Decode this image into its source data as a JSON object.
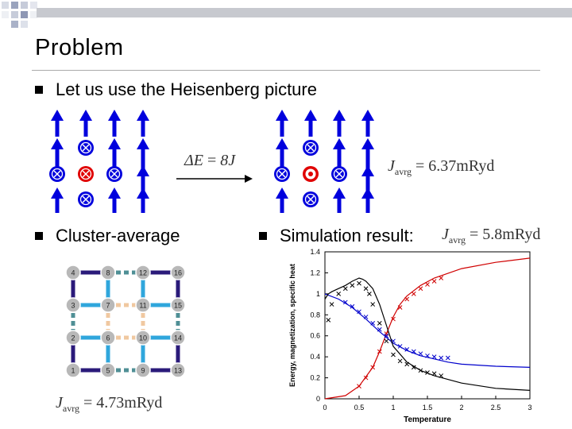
{
  "slide": {
    "title": "Problem",
    "bullets": [
      {
        "text": "Let us use the Heisenberg picture"
      },
      {
        "text": "Cluster-average"
      },
      {
        "text": "Simulation result:"
      }
    ]
  },
  "formulas": {
    "delta_e": {
      "lhs": "ΔE",
      "eq": " = ",
      "value": "8J"
    },
    "j_left": {
      "sym": "J",
      "sub": "avrg",
      "eq": " = ",
      "value": "4.73",
      "unit": "mRyd"
    },
    "j_middle": {
      "sym": "J",
      "sub": "avrg",
      "eq": " = ",
      "value": "6.37",
      "unit": "mRyd"
    },
    "j_right": {
      "sym": "J",
      "sub": "avrg",
      "eq": " = ",
      "value": "5.8",
      "unit": "mRyd"
    }
  },
  "lattice": {
    "nodes": [
      [
        {
          "label": "4"
        },
        {
          "label": "8"
        },
        {
          "label": "12"
        },
        {
          "label": "16"
        }
      ],
      [
        {
          "label": "3"
        },
        {
          "label": "7"
        },
        {
          "label": "11"
        },
        {
          "label": "15"
        }
      ],
      [
        {
          "label": "2"
        },
        {
          "label": "6"
        },
        {
          "label": "10"
        },
        {
          "label": "14"
        }
      ],
      [
        {
          "label": "1"
        },
        {
          "label": "5"
        },
        {
          "label": "9"
        },
        {
          "label": "13"
        }
      ]
    ]
  },
  "colors": {
    "arrow_blue": "#0000dd",
    "spin_red": "#e00000",
    "lattice_purple": "#2a1a7a",
    "lattice_blue": "#2fa6dc",
    "lattice_teal": "#4f8f95",
    "lattice_peach": "#f0c8a0"
  },
  "chart_data": {
    "type": "line",
    "xlabel": "Temperature",
    "ylabel": "Energy, magnetization, specific heat",
    "xlim": [
      0,
      3
    ],
    "ylim": [
      0,
      1.4
    ],
    "xticks": [
      "0",
      "0.5",
      "1",
      "1.5",
      "2",
      "2.5",
      "3"
    ],
    "yticks": [
      "0",
      "0.2",
      "0.4",
      "0.6",
      "0.8",
      "1",
      "1.2",
      "1.4"
    ],
    "series": [
      {
        "color": "#d00000",
        "style": "line",
        "x": [
          0,
          0.3,
          0.5,
          0.7,
          0.8,
          0.9,
          1.0,
          1.1,
          1.2,
          1.4,
          1.6,
          2.0,
          2.5,
          3.0
        ],
        "y": [
          0,
          0.03,
          0.12,
          0.3,
          0.45,
          0.62,
          0.78,
          0.9,
          0.98,
          1.08,
          1.15,
          1.24,
          1.3,
          1.34
        ]
      },
      {
        "color": "#d00000",
        "style": "markers",
        "x": [
          0.5,
          0.6,
          0.7,
          0.8,
          0.9,
          1.0,
          1.1,
          1.2,
          1.3,
          1.4,
          1.5,
          1.6,
          1.7
        ],
        "y": [
          0.12,
          0.2,
          0.3,
          0.45,
          0.62,
          0.76,
          0.87,
          0.95,
          1.0,
          1.05,
          1.09,
          1.12,
          1.15
        ]
      },
      {
        "color": "#0000cc",
        "style": "line",
        "x": [
          0,
          0.2,
          0.4,
          0.6,
          0.8,
          1.0,
          1.2,
          1.4,
          1.6,
          1.8,
          2.0,
          2.5,
          3.0
        ],
        "y": [
          1.0,
          0.95,
          0.87,
          0.76,
          0.64,
          0.53,
          0.46,
          0.41,
          0.38,
          0.35,
          0.33,
          0.31,
          0.3
        ]
      },
      {
        "color": "#0000cc",
        "style": "markers",
        "x": [
          0.3,
          0.4,
          0.5,
          0.6,
          0.7,
          0.8,
          0.9,
          1.0,
          1.1,
          1.2,
          1.3,
          1.4,
          1.5,
          1.6,
          1.7,
          1.8
        ],
        "y": [
          0.92,
          0.88,
          0.83,
          0.78,
          0.72,
          0.66,
          0.6,
          0.55,
          0.5,
          0.47,
          0.45,
          0.43,
          0.41,
          0.4,
          0.39,
          0.39
        ]
      },
      {
        "color": "#000000",
        "style": "line",
        "x": [
          0,
          0.05,
          0.1,
          0.2,
          0.3,
          0.4,
          0.5,
          0.55,
          0.6,
          0.7,
          0.8,
          0.9,
          1.0,
          1.2,
          1.4,
          1.6,
          2.0,
          2.5,
          3.0
        ],
        "y": [
          0.95,
          1.0,
          1.02,
          1.05,
          1.08,
          1.12,
          1.15,
          1.14,
          1.12,
          1.05,
          0.9,
          0.7,
          0.5,
          0.35,
          0.27,
          0.22,
          0.15,
          0.1,
          0.08
        ]
      },
      {
        "color": "#000000",
        "style": "markers",
        "x": [
          0.05,
          0.1,
          0.2,
          0.3,
          0.4,
          0.5,
          0.6,
          0.65,
          0.7,
          0.8,
          0.9,
          1.0,
          1.1,
          1.2,
          1.3,
          1.4,
          1.5,
          1.6,
          1.7
        ],
        "y": [
          0.75,
          0.9,
          1.0,
          1.05,
          1.08,
          1.1,
          1.05,
          1.0,
          0.9,
          0.72,
          0.55,
          0.42,
          0.36,
          0.33,
          0.3,
          0.27,
          0.25,
          0.24,
          0.22
        ]
      }
    ]
  }
}
